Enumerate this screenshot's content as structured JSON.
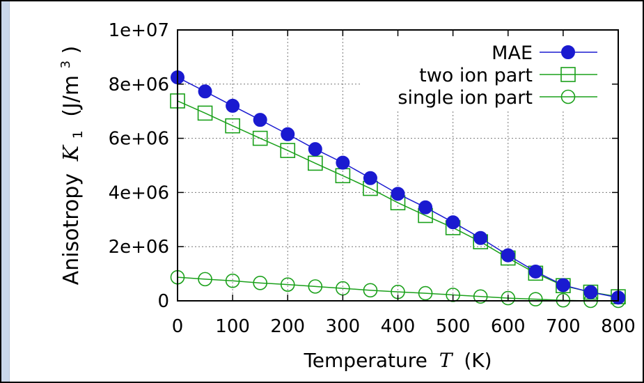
{
  "chart_data": {
    "type": "line",
    "xlabel": "Temperature",
    "xlabel_symbol": "T",
    "xlabel_unit": "(K)",
    "ylabel": "Anisotropy",
    "ylabel_symbol": "K",
    "ylabel_subscript": "1",
    "ylabel_unit_pre": "(J/m",
    "ylabel_unit_sup": "3",
    "ylabel_unit_post": ")",
    "xlim": [
      0,
      800
    ],
    "ylim": [
      0,
      10000000
    ],
    "xticks": [
      0,
      100,
      200,
      300,
      400,
      500,
      600,
      700,
      800
    ],
    "xtick_labels": [
      "0",
      "100",
      "200",
      "300",
      "400",
      "500",
      "600",
      "700",
      "800"
    ],
    "yticks": [
      0,
      2000000,
      4000000,
      6000000,
      8000000,
      10000000
    ],
    "ytick_labels": [
      "0",
      "2e+06",
      "4e+06",
      "6e+06",
      "8e+06",
      "1e+07"
    ],
    "grid": true,
    "legend_position": "top-right",
    "x": [
      0,
      50,
      100,
      150,
      200,
      250,
      300,
      350,
      400,
      450,
      500,
      550,
      600,
      650,
      700,
      750,
      800
    ],
    "series": [
      {
        "name": "MAE",
        "color": "#1a1ad0",
        "marker": "filled-circle",
        "values": [
          8250000,
          7730000,
          7200000,
          6680000,
          6150000,
          5600000,
          5100000,
          4530000,
          3950000,
          3450000,
          2900000,
          2320000,
          1680000,
          1080000,
          580000,
          320000,
          120000
        ]
      },
      {
        "name": "two ion part",
        "color": "#1aa01a",
        "marker": "open-square",
        "values": [
          7380000,
          6930000,
          6460000,
          6000000,
          5550000,
          5080000,
          4620000,
          4150000,
          3620000,
          3150000,
          2700000,
          2180000,
          1580000,
          1020000,
          560000,
          320000,
          150000
        ]
      },
      {
        "name": "single ion part",
        "color": "#1aa01a",
        "marker": "open-circle",
        "values": [
          870000,
          800000,
          740000,
          660000,
          600000,
          530000,
          460000,
          390000,
          330000,
          280000,
          220000,
          160000,
          100000,
          60000,
          20000,
          0,
          0
        ]
      }
    ]
  }
}
